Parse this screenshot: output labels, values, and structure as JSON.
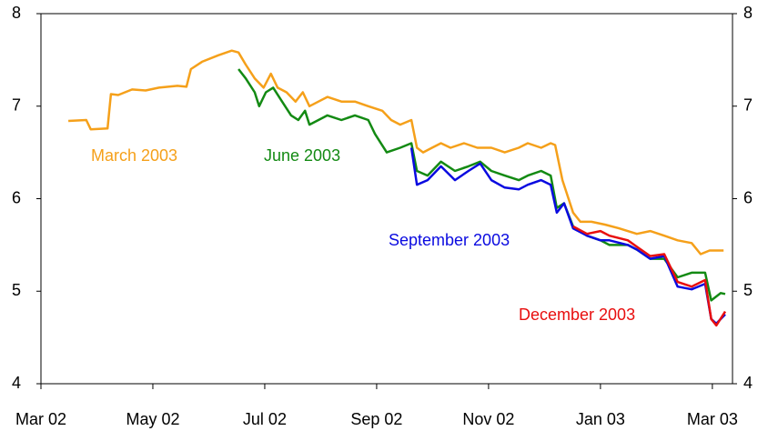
{
  "chart_data": {
    "type": "line",
    "xlim": [
      0,
      12.36
    ],
    "xticks": [
      {
        "value": 0,
        "label": "Mar 02"
      },
      {
        "value": 2,
        "label": "May 02"
      },
      {
        "value": 4,
        "label": "Jul 02"
      },
      {
        "value": 6,
        "label": "Sep 02"
      },
      {
        "value": 8,
        "label": "Nov 02"
      },
      {
        "value": 10,
        "label": "Jan 03"
      },
      {
        "value": 12,
        "label": "Mar 03"
      }
    ],
    "ylim": [
      4,
      8
    ],
    "yticks": [
      4,
      5,
      6,
      7,
      8
    ],
    "y2lim": [
      4,
      8
    ],
    "y2ticks": [
      4,
      5,
      6,
      7,
      8
    ],
    "series": [
      {
        "name": "March 2003",
        "color": "#f5a01a",
        "x": [
          0.49,
          0.81,
          0.89,
          1.19,
          1.25,
          1.38,
          1.63,
          1.87,
          2.11,
          2.44,
          2.6,
          2.68,
          2.88,
          3.17,
          3.41,
          3.53,
          3.66,
          3.82,
          3.98,
          4.11,
          4.23,
          4.39,
          4.55,
          4.68,
          4.8,
          4.96,
          5.12,
          5.37,
          5.61,
          5.85,
          6.1,
          6.26,
          6.42,
          6.62,
          6.72,
          6.83,
          6.99,
          7.15,
          7.32,
          7.56,
          7.8,
          8.05,
          8.29,
          8.54,
          8.7,
          8.94,
          9.11,
          9.19,
          9.32,
          9.43,
          9.51,
          9.64,
          9.84,
          10.08,
          10.33,
          10.65,
          10.89,
          11.14,
          11.38,
          11.63,
          11.79,
          11.95,
          12.2
        ],
        "values": [
          6.84,
          6.85,
          6.75,
          6.76,
          7.13,
          7.12,
          7.18,
          7.17,
          7.2,
          7.22,
          7.21,
          7.4,
          7.48,
          7.55,
          7.6,
          7.58,
          7.45,
          7.3,
          7.2,
          7.35,
          7.2,
          7.15,
          7.05,
          7.15,
          7.0,
          7.05,
          7.1,
          7.05,
          7.05,
          7.0,
          6.95,
          6.85,
          6.8,
          6.85,
          6.55,
          6.5,
          6.55,
          6.6,
          6.55,
          6.6,
          6.55,
          6.55,
          6.5,
          6.55,
          6.6,
          6.55,
          6.6,
          6.58,
          6.2,
          6.0,
          5.85,
          5.75,
          5.75,
          5.72,
          5.68,
          5.62,
          5.65,
          5.6,
          5.55,
          5.52,
          5.4,
          5.44,
          5.44
        ]
      },
      {
        "name": "June 2003",
        "color": "#138a13",
        "x": [
          3.53,
          3.66,
          3.82,
          3.9,
          4.02,
          4.15,
          4.31,
          4.47,
          4.6,
          4.72,
          4.8,
          4.96,
          5.12,
          5.37,
          5.61,
          5.85,
          5.97,
          6.18,
          6.42,
          6.62,
          6.72,
          6.91,
          7.15,
          7.4,
          7.64,
          7.85,
          8.05,
          8.29,
          8.54,
          8.7,
          8.94,
          9.11,
          9.22,
          9.35,
          9.51,
          9.76,
          10.0,
          10.16,
          10.49,
          10.65,
          10.89,
          11.14,
          11.38,
          11.63,
          11.87,
          11.98,
          12.15,
          12.23
        ],
        "values": [
          7.4,
          7.3,
          7.15,
          7.0,
          7.15,
          7.2,
          7.05,
          6.9,
          6.85,
          6.95,
          6.8,
          6.85,
          6.9,
          6.85,
          6.9,
          6.85,
          6.7,
          6.5,
          6.55,
          6.6,
          6.3,
          6.25,
          6.4,
          6.3,
          6.35,
          6.4,
          6.3,
          6.25,
          6.2,
          6.25,
          6.3,
          6.25,
          5.9,
          5.95,
          5.7,
          5.6,
          5.55,
          5.5,
          5.5,
          5.45,
          5.35,
          5.35,
          5.15,
          5.2,
          5.2,
          4.9,
          4.98,
          4.97
        ]
      },
      {
        "name": "September 2003",
        "color": "#0a0ae0",
        "x": [
          6.62,
          6.72,
          6.91,
          7.15,
          7.4,
          7.64,
          7.85,
          8.05,
          8.29,
          8.54,
          8.7,
          8.94,
          9.11,
          9.22,
          9.35,
          9.51,
          9.76,
          10.0,
          10.16,
          10.49,
          10.65,
          10.89,
          11.14,
          11.38,
          11.63,
          11.87,
          11.98,
          12.07,
          12.23
        ],
        "values": [
          6.55,
          6.15,
          6.2,
          6.35,
          6.2,
          6.3,
          6.38,
          6.2,
          6.12,
          6.1,
          6.15,
          6.2,
          6.15,
          5.85,
          5.95,
          5.68,
          5.6,
          5.55,
          5.55,
          5.5,
          5.45,
          5.35,
          5.38,
          5.05,
          5.02,
          5.08,
          4.7,
          4.65,
          4.75
        ]
      },
      {
        "name": "December 2003",
        "color": "#e80e0e",
        "x": [
          9.51,
          9.76,
          10.0,
          10.16,
          10.49,
          10.65,
          10.89,
          11.14,
          11.38,
          11.63,
          11.87,
          11.98,
          12.07,
          12.23
        ],
        "values": [
          5.7,
          5.62,
          5.65,
          5.6,
          5.55,
          5.48,
          5.38,
          5.4,
          5.1,
          5.05,
          5.12,
          4.7,
          4.63,
          4.78
        ]
      }
    ]
  }
}
